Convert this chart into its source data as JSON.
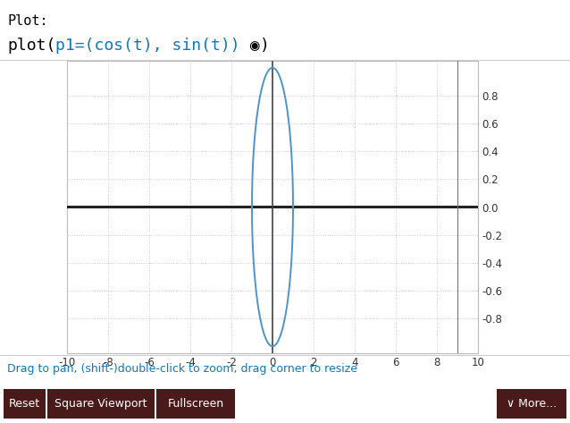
{
  "bg_color": "#ffffff",
  "plot_bg_color": "#ffffff",
  "plot_border_color": "#bbbbbb",
  "grid_color": "#cccccc",
  "x_axis_color": "#222222",
  "y_axis_color": "#444444",
  "xlim": [
    -10,
    10
  ],
  "ylim": [
    -1.05,
    1.05
  ],
  "xticks": [
    -10,
    -8,
    -6,
    -4,
    -2,
    0,
    2,
    4,
    6,
    8,
    10
  ],
  "yticks": [
    -0.8,
    -0.6,
    -0.4,
    -0.2,
    0.2,
    0.4,
    0.6,
    0.8
  ],
  "ytick_labels": [
    "-0.8",
    "-0.6",
    "-0.4",
    "-0.2",
    "0.2",
    "0.4",
    "0.6",
    "0.8"
  ],
  "ytick_zero_label": "0.0",
  "tick_fontsize": 8.5,
  "curve_color": "#4d94cc",
  "curve_lw": 1.4,
  "extra_vline_x": 9,
  "extra_vline_color": "#777777",
  "extra_vline_lw": 0.8,
  "title_text": "Plot:",
  "title_fontsize": 11,
  "code_fontsize": 13,
  "code_parts": [
    [
      "plot(",
      "#000000"
    ],
    [
      "p1=(cos(t), sin(t))",
      "#1177bb"
    ],
    [
      " ◉",
      "#000000"
    ],
    [
      ")",
      "#000000"
    ]
  ],
  "separator_color": "#cccccc",
  "footer_text": "Drag to pan, (shift-)double-click to zoom, drag corner to resize",
  "footer_color": "#1177bb",
  "footer_fontsize": 9,
  "button_bg": "#4a1a1a",
  "button_fg": "#ffffff",
  "button_fontsize": 9,
  "button_labels": [
    "Reset",
    "Square Viewport",
    "Fullscreen"
  ],
  "more_label": "∨ More...",
  "resize_handle_color": "#aaaaaa"
}
